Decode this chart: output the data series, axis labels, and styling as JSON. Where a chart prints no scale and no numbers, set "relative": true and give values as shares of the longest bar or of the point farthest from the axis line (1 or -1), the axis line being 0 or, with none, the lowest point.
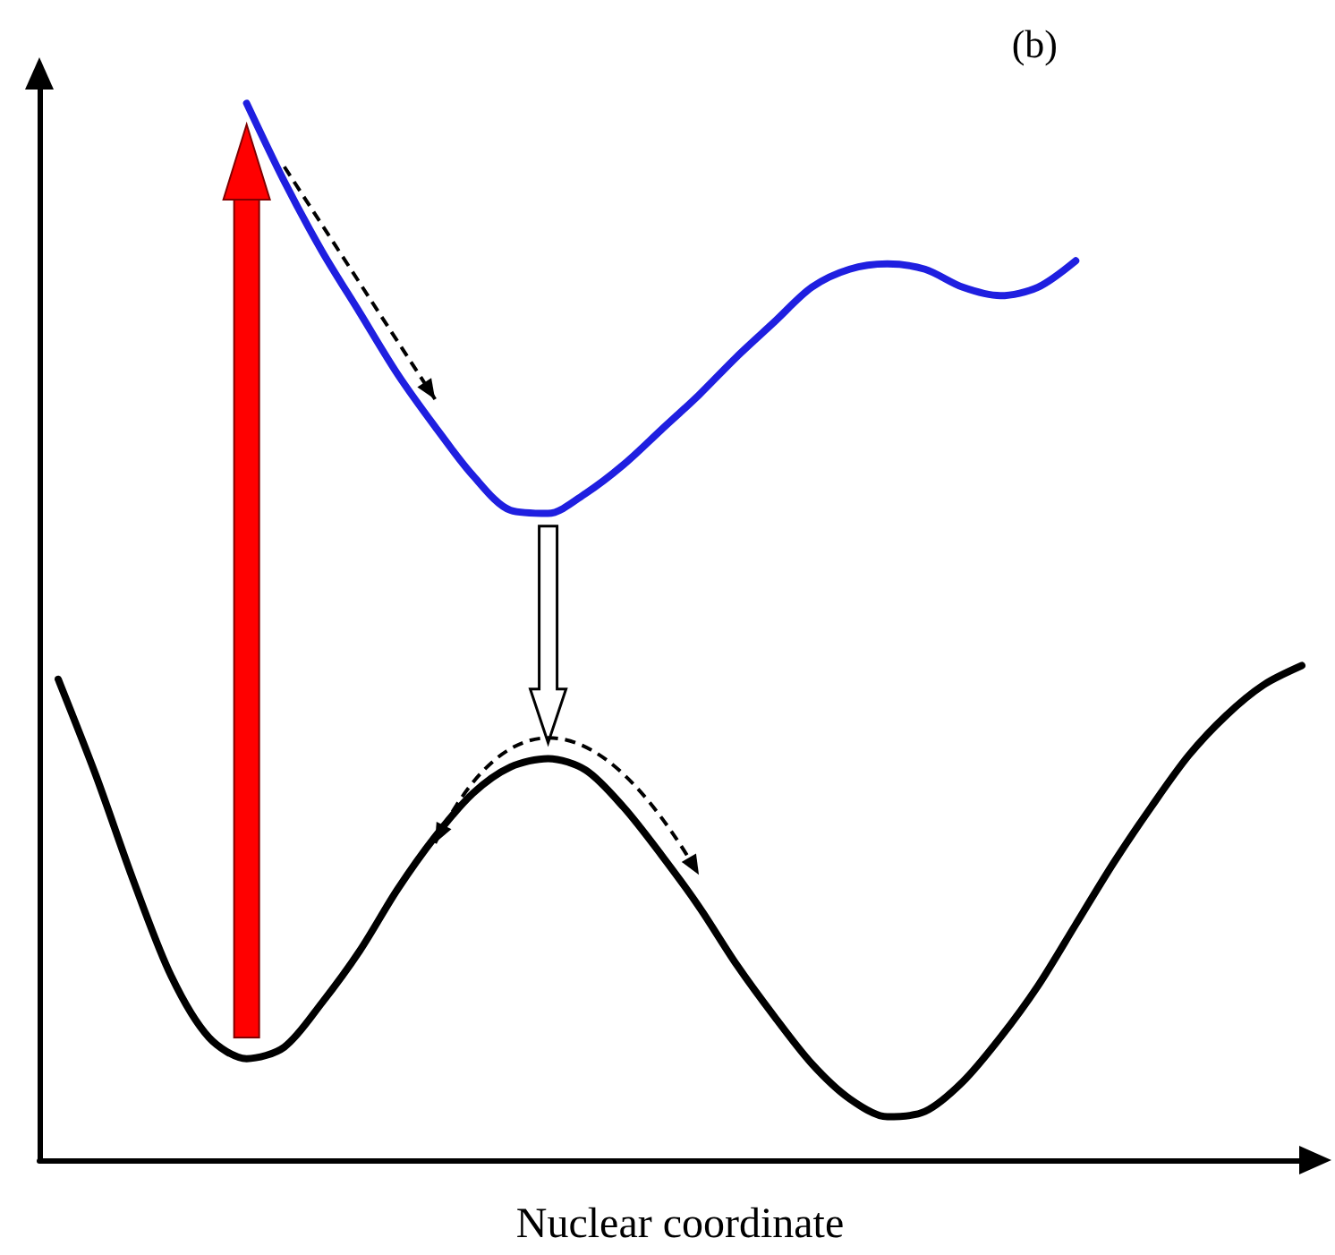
{
  "chart_data": {
    "type": "line",
    "relative": true,
    "xlabel": "Nuclear coordinate",
    "annotations": [
      "(b)"
    ],
    "categories": [
      null,
      null,
      null,
      null,
      null,
      null,
      null,
      null,
      null,
      null,
      null,
      null,
      null,
      null,
      null,
      null,
      null,
      null,
      null,
      null,
      null,
      null,
      null,
      null,
      null,
      null,
      null,
      null,
      null,
      null,
      null,
      null,
      null,
      null
    ],
    "series": [
      {
        "color": "#000000",
        "values": [
          0.455,
          0.364,
          0.264,
          0.174,
          0.116,
          0.096,
          0.107,
          0.149,
          0.198,
          0.256,
          0.306,
          0.347,
          0.372,
          0.38,
          0.369,
          0.334,
          0.289,
          0.24,
          0.185,
          0.136,
          0.091,
          0.058,
          0.041,
          0.046,
          0.074,
          0.116,
          0.165,
          0.223,
          0.281,
          0.334,
          0.383,
          0.421,
          0.45,
          0.468
        ]
      },
      {
        "color": "#1f1fe0",
        "values": [
          null,
          null,
          null,
          null,
          null,
          1,
          0.926,
          0.86,
          0.802,
          0.744,
          0.694,
          0.648,
          0.615,
          0.612,
          0.631,
          0.658,
          0.691,
          0.724,
          0.76,
          0.793,
          0.826,
          0.843,
          0.848,
          0.843,
          0.826,
          0.818,
          0.826,
          0.851,
          null,
          null,
          null,
          null,
          null,
          null
        ]
      }
    ]
  }
}
